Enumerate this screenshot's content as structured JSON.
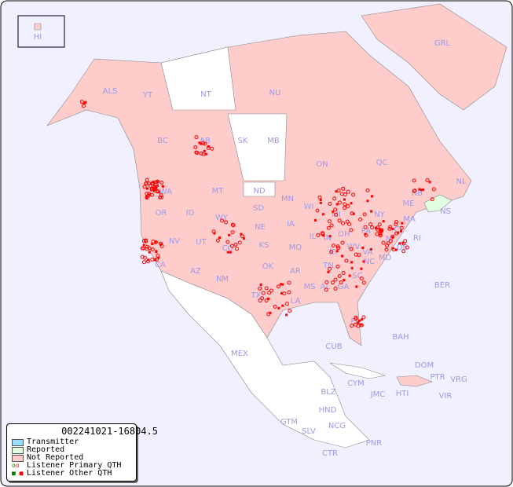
{
  "map": {
    "timestamp": "002241021-16804.5",
    "colors": {
      "background": "#f0f0ff",
      "not_reported": "#ffcccc",
      "reported": "#e0ffe0",
      "transmitter": "#99ddff",
      "unlisted": "#ffffff",
      "listener": "#ff0000",
      "label": "#9a9ae6"
    },
    "regions": [
      "HI",
      "ALS",
      "YT",
      "NT",
      "NU",
      "GRL",
      "BC",
      "AB",
      "SK",
      "MB",
      "ON",
      "QC",
      "NL",
      "NB",
      "NS",
      "WA",
      "OR",
      "ID",
      "MT",
      "WY",
      "ND",
      "SD",
      "NE",
      "KS",
      "OK",
      "TX",
      "MN",
      "WI",
      "IA",
      "IL",
      "MO",
      "AR",
      "LA",
      "MI",
      "IN",
      "OH",
      "KY",
      "TN",
      "MS",
      "AL",
      "GA",
      "FL",
      "SC",
      "NC",
      "VA",
      "WV",
      "PA",
      "NY",
      "ME",
      "MA",
      "CT",
      "RI",
      "NJ",
      "DE",
      "MD",
      "NV",
      "UT",
      "CO",
      "AZ",
      "NM",
      "CA",
      "MEX",
      "BER",
      "BAH",
      "CUB",
      "CYM",
      "JMC",
      "HTI",
      "DOM",
      "PTR",
      "VRG",
      "VIR",
      "BLZ",
      "HND",
      "GTM",
      "SLV",
      "NCG",
      "CTR",
      "PNR"
    ]
  },
  "legend": {
    "items": [
      {
        "label": "Transmitter",
        "symbol": "swatch",
        "color": "#99ddff"
      },
      {
        "label": "Reported",
        "symbol": "swatch",
        "color": "#e0ffe0"
      },
      {
        "label": "Not Reported",
        "symbol": "swatch",
        "color": "#ffcccc"
      },
      {
        "label": "Listener Primary QTH",
        "symbol": "circle"
      },
      {
        "label": "Listener Other QTH",
        "symbol": "square"
      }
    ]
  }
}
